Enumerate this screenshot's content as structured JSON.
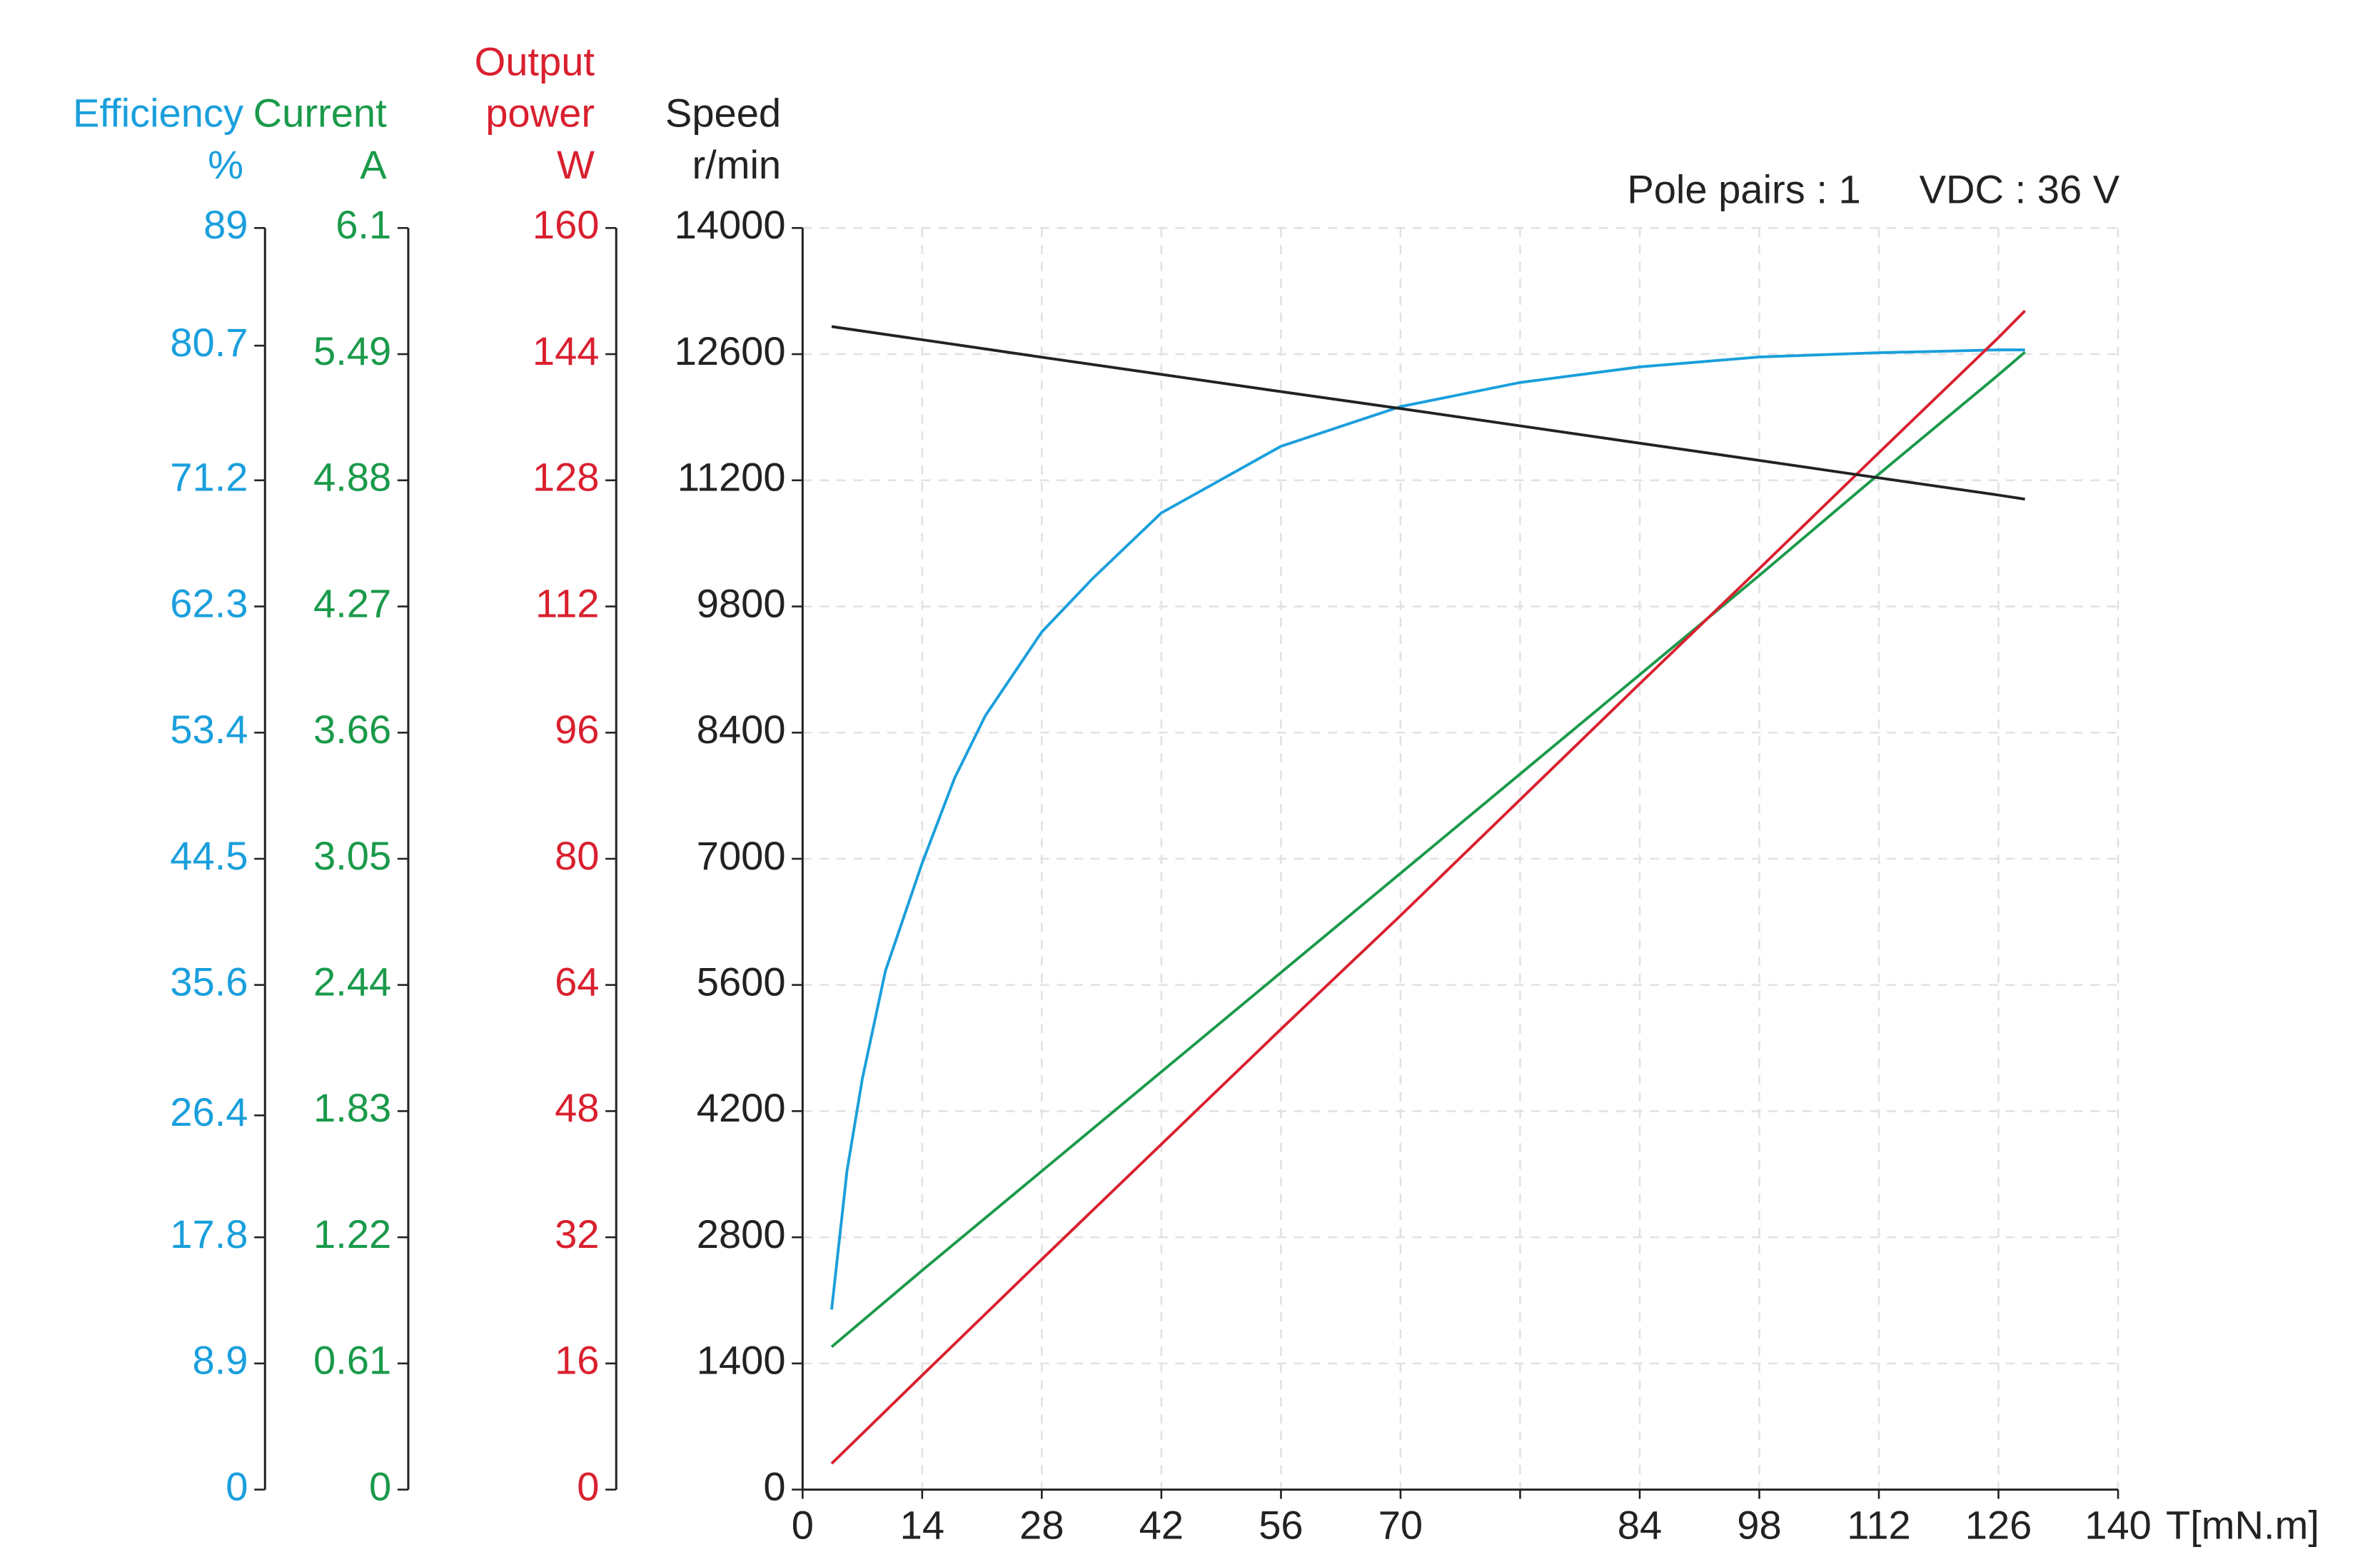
{
  "chart_data": {
    "type": "line",
    "annotations": [
      "Pole pairs : 1",
      "VDC : 36 V"
    ],
    "x_label": "T[mN.m]",
    "xticks": [
      0,
      14,
      28,
      42,
      56,
      70,
      null,
      84,
      98,
      112,
      126,
      140
    ],
    "grid": true,
    "axes": [
      {
        "title": [
          "Efficiency",
          "%"
        ],
        "color": "#1a9fdc",
        "ylim": [
          0,
          89
        ],
        "yticks": [
          0,
          8.9,
          17.8,
          26.4,
          35.6,
          44.5,
          53.4,
          62.3,
          71.2,
          80.7,
          89
        ],
        "x": [
          3.4,
          5.2,
          7.0,
          9.7,
          14,
          17.8,
          21.4,
          28,
          34,
          42,
          56,
          70,
          77,
          84,
          98,
          112,
          126,
          129.1
        ],
        "values": [
          12.7,
          22.5,
          29.0,
          36.6,
          44.2,
          50.2,
          54.6,
          60.5,
          64.3,
          68.9,
          73.6,
          76.4,
          78.1,
          79.2,
          79.9,
          80.2,
          80.4,
          80.4
        ]
      },
      {
        "title": [
          "Current",
          "A"
        ],
        "color": "#1a9a4a",
        "ylim": [
          0,
          6.1
        ],
        "yticks": [
          0,
          0.61,
          1.22,
          1.83,
          2.44,
          3.05,
          3.66,
          4.27,
          4.88,
          5.49,
          6.1
        ],
        "x": [
          3.4,
          14,
          28,
          42,
          56,
          70,
          84,
          98,
          112,
          126,
          129.1
        ],
        "values": [
          0.69,
          1.06,
          1.54,
          2.02,
          2.5,
          2.98,
          3.94,
          4.42,
          4.91,
          5.39,
          5.5
        ]
      },
      {
        "title": [
          "Output",
          "power",
          "W"
        ],
        "color": "#d9202f",
        "ylim": [
          0,
          160
        ],
        "yticks": [
          0,
          16,
          32,
          48,
          64,
          80,
          96,
          112,
          128,
          144,
          160
        ],
        "x": [
          3.4,
          14,
          28,
          42,
          56,
          70,
          84,
          98,
          112,
          126,
          129.1
        ],
        "values": [
          3.3,
          14.5,
          29.2,
          43.8,
          58.4,
          72.8,
          102.2,
          116.8,
          131.5,
          146.1,
          149.5
        ]
      },
      {
        "title": [
          "Speed",
          "r/min"
        ],
        "color": "#222222",
        "ylim": [
          0,
          14000
        ],
        "yticks": [
          0,
          1400,
          2800,
          4200,
          5600,
          7000,
          8400,
          9800,
          11200,
          12600,
          14000
        ],
        "x": [
          3.4,
          14,
          28,
          42,
          56,
          70,
          84,
          98,
          112,
          126,
          129.1
        ],
        "values": [
          12906,
          12760,
          12566,
          12375,
          12184,
          11996,
          11612,
          11421,
          11227,
          11036,
          10991
        ]
      }
    ]
  }
}
